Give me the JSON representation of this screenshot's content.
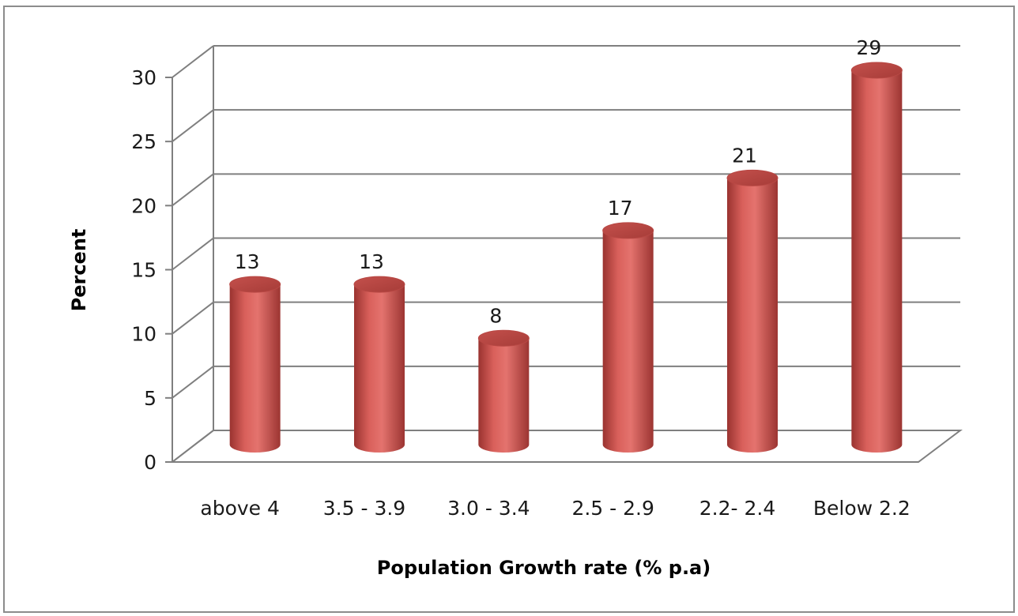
{
  "chart_data": {
    "type": "bar",
    "style": "3d-cylinder",
    "title": "",
    "xlabel": "Population Growth rate (% p.a)",
    "ylabel": "Percent",
    "categories": [
      "above 4",
      "3.5 - 3.9",
      "3.0 - 3.4",
      "2.5 - 2.9",
      "2.2- 2.4",
      "Below 2.2"
    ],
    "values": [
      12.5,
      12.5,
      8.3,
      16.7,
      20.8,
      29.2
    ],
    "data_labels": [
      "13",
      "13",
      "8",
      "17",
      "21",
      "29"
    ],
    "ylim": [
      0,
      30
    ],
    "yticks": [
      "0",
      "5",
      "10",
      "15",
      "20",
      "25",
      "30"
    ],
    "grid": true,
    "legend": "none",
    "colors": {
      "bar": "#c0504d",
      "bar_light": "#e8847f",
      "bar_dark": "#8b2e2b",
      "grid": "#7f7f7f"
    }
  }
}
